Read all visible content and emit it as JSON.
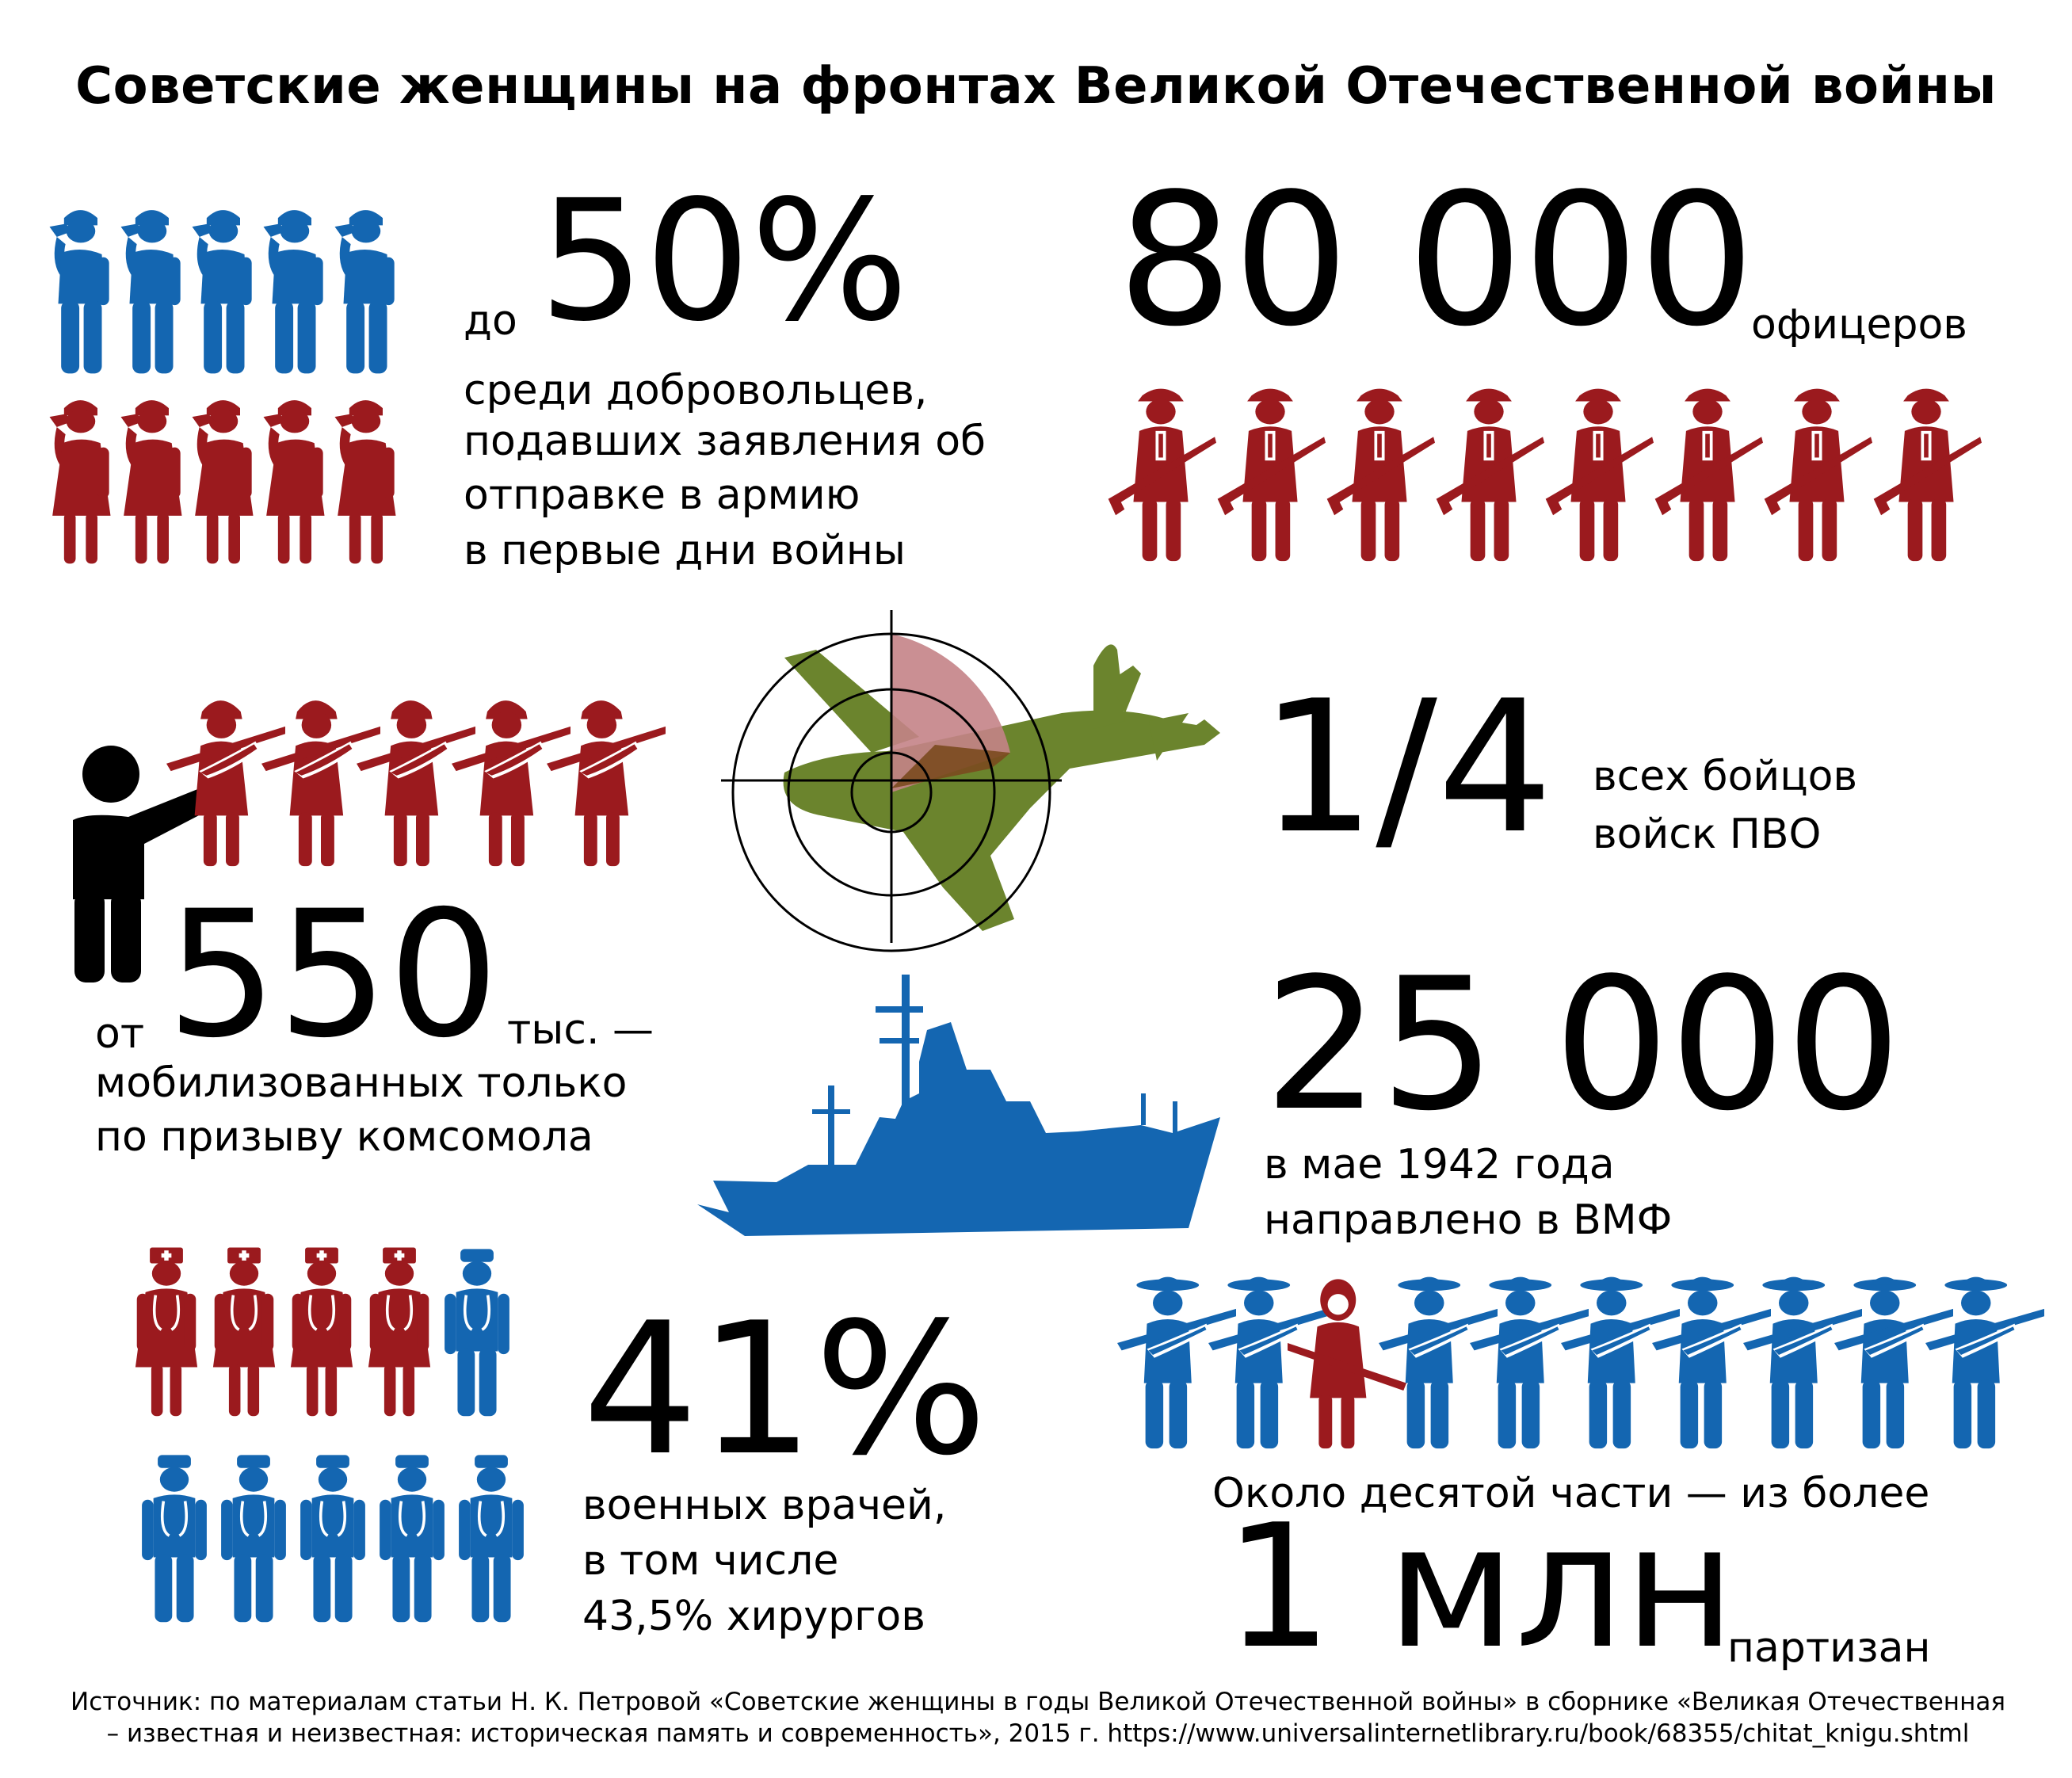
{
  "title": "Советские женщины на фронтах Великой Отечественной войны",
  "colors": {
    "blue": "#1466b1",
    "red": "#9b1a1e",
    "green": "#6b842d",
    "black": "#000000",
    "pink": "#c48387"
  },
  "icons": [
    "saluting-soldier-icon",
    "female-officer-rifle-icon",
    "commander-pointing-icon",
    "female-rifle-soldier-icon",
    "airplane-target-icon",
    "warship-icon",
    "female-medic-icon",
    "male-medic-icon",
    "partisan-icon"
  ],
  "volunteers": {
    "prefix": "до",
    "value": "50%",
    "line1": "среди добровольцев,",
    "line2": "подавших заявления об",
    "line3": "отправке в армию",
    "line4": "в первые дни войны"
  },
  "officers": {
    "value": "80 000",
    "unit": "офицеров"
  },
  "komsomol": {
    "prefix": "от",
    "value": "550",
    "unit": "тыс. —",
    "line1": "мобилизованных только",
    "line2": "по призыву комсомола"
  },
  "air_defense": {
    "value": "1/4",
    "line1": "всех бойцов",
    "line2": "войск ПВО"
  },
  "navy": {
    "value": "25 000",
    "line1": "в мае 1942 года",
    "line2": "направлено в ВМФ"
  },
  "doctors": {
    "value": "41%",
    "line1": "военных врачей,",
    "line2": "в том числе",
    "line3": "43,5% хирургов"
  },
  "partisans": {
    "lead": "Около десятой части — из более",
    "value": "1 млн",
    "unit": "партизан"
  },
  "source": {
    "line1": "Источник: по материалам статьи Н. К. Петровой «Советские женщины в годы Великой Отечественной войны» в сборнике «Великая Отечественная",
    "line2": "– известная и неизвестная: историческая память и современность», 2015 г. https://www.universalinternetlibrary.ru/book/68355/chitat_knigu.shtml"
  }
}
